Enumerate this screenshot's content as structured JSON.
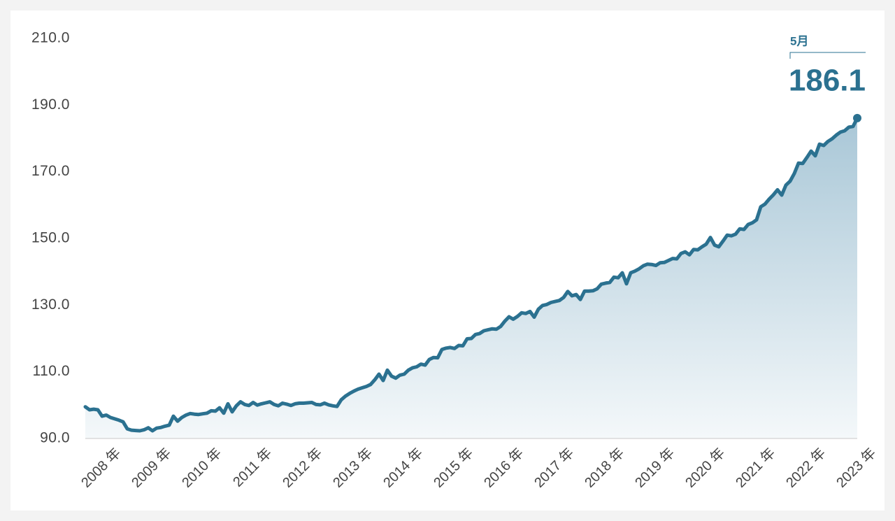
{
  "chart_data": {
    "type": "area",
    "categories": [
      "2008 年",
      null,
      null,
      null,
      null,
      null,
      null,
      null,
      null,
      null,
      null,
      null,
      "2009 年",
      null,
      null,
      null,
      null,
      null,
      null,
      null,
      null,
      null,
      null,
      null,
      "2010 年",
      null,
      null,
      null,
      null,
      null,
      null,
      null,
      null,
      null,
      null,
      null,
      "2011 年",
      null,
      null,
      null,
      null,
      null,
      null,
      null,
      null,
      null,
      null,
      null,
      "2012 年",
      null,
      null,
      null,
      null,
      null,
      null,
      null,
      null,
      null,
      null,
      null,
      "2013 年",
      null,
      null,
      null,
      null,
      null,
      null,
      null,
      null,
      null,
      null,
      null,
      "2014 年",
      null,
      null,
      null,
      null,
      null,
      null,
      null,
      null,
      null,
      null,
      null,
      "2015 年",
      null,
      null,
      null,
      null,
      null,
      null,
      null,
      null,
      null,
      null,
      null,
      "2016 年",
      null,
      null,
      null,
      null,
      null,
      null,
      null,
      null,
      null,
      null,
      null,
      "2017 年",
      null,
      null,
      null,
      null,
      null,
      null,
      null,
      null,
      null,
      null,
      null,
      "2018 年",
      null,
      null,
      null,
      null,
      null,
      null,
      null,
      null,
      null,
      null,
      null,
      "2019 年",
      null,
      null,
      null,
      null,
      null,
      null,
      null,
      null,
      null,
      null,
      null,
      "2020 年",
      null,
      null,
      null,
      null,
      null,
      null,
      null,
      null,
      null,
      null,
      null,
      "2021 年",
      null,
      null,
      null,
      null,
      null,
      null,
      null,
      null,
      null,
      null,
      null,
      "2022 年",
      null,
      null,
      null,
      null,
      null,
      null,
      null,
      null,
      null,
      null,
      null,
      "2023 年",
      null,
      null,
      null,
      null
    ],
    "values": [
      99.5,
      98.6,
      98.8,
      98.6,
      96.7,
      97.0,
      96.3,
      95.9,
      95.5,
      95.0,
      92.9,
      92.5,
      92.4,
      92.3,
      92.6,
      93.2,
      92.3,
      93.1,
      93.3,
      93.7,
      94.0,
      96.7,
      95.2,
      96.3,
      97.0,
      97.5,
      97.3,
      97.2,
      97.4,
      97.6,
      98.3,
      98.2,
      99.2,
      97.6,
      100.4,
      98.0,
      99.8,
      101.0,
      100.2,
      99.9,
      100.8,
      100.0,
      100.4,
      100.7,
      101.0,
      100.2,
      99.8,
      100.6,
      100.3,
      99.9,
      100.4,
      100.6,
      100.6,
      100.7,
      100.8,
      100.2,
      100.1,
      100.6,
      100.1,
      99.8,
      99.6,
      101.6,
      102.7,
      103.5,
      104.2,
      104.8,
      105.2,
      105.6,
      106.2,
      107.6,
      109.3,
      107.4,
      110.5,
      108.7,
      108.1,
      109.0,
      109.3,
      110.5,
      111.2,
      111.5,
      112.3,
      112.0,
      113.7,
      114.3,
      114.2,
      116.7,
      117.1,
      117.3,
      117.0,
      117.9,
      117.8,
      119.9,
      120.0,
      121.2,
      121.5,
      122.3,
      122.6,
      122.9,
      122.8,
      123.6,
      125.2,
      126.5,
      125.8,
      126.6,
      127.7,
      127.5,
      128.1,
      126.4,
      128.8,
      129.9,
      130.2,
      130.8,
      131.1,
      131.4,
      132.3,
      134.1,
      132.8,
      133.2,
      131.7,
      134.2,
      134.2,
      134.3,
      134.9,
      136.3,
      136.6,
      136.8,
      138.4,
      138.2,
      139.7,
      136.4,
      139.7,
      140.2,
      140.9,
      141.8,
      142.3,
      142.2,
      141.9,
      142.7,
      142.8,
      143.4,
      144.0,
      143.9,
      145.5,
      146.0,
      145.1,
      146.7,
      146.6,
      147.5,
      148.3,
      150.3,
      148.0,
      147.5,
      149.2,
      151.0,
      150.8,
      151.3,
      152.9,
      152.7,
      154.2,
      154.7,
      155.6,
      159.5,
      160.3,
      161.8,
      163.1,
      164.6,
      163.0,
      166.0,
      167.2,
      169.5,
      172.6,
      172.5,
      174.3,
      176.2,
      174.8,
      178.3,
      177.9,
      179.1,
      179.9,
      181.0,
      181.9,
      182.3,
      183.4,
      183.6,
      186.1
    ],
    "color": "#2b7190",
    "ylim": [
      90,
      210
    ],
    "yticks": [
      {
        "value": 90,
        "label": "90.0"
      },
      {
        "value": 110,
        "label": "110.0"
      },
      {
        "value": 130,
        "label": "130.0"
      },
      {
        "value": 150,
        "label": "150.0"
      },
      {
        "value": 170,
        "label": "170.0"
      },
      {
        "value": 190,
        "label": "190.0"
      },
      {
        "value": 210,
        "label": "210.0"
      }
    ],
    "annotation": "5月"
  }
}
